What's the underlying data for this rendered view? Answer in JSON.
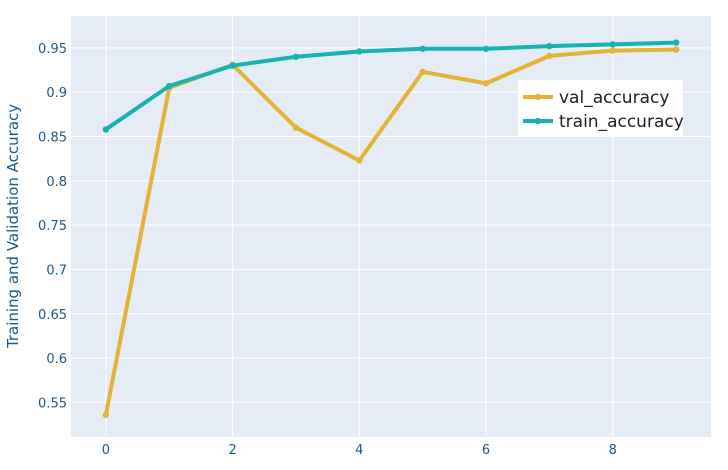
{
  "chart_data": {
    "type": "line",
    "title": "",
    "xlabel": "",
    "ylabel": "Training and Validation Accuracy",
    "x": [
      0,
      1,
      2,
      3,
      4,
      5,
      6,
      7,
      8,
      9
    ],
    "xlim": [
      -0.55,
      9.55
    ],
    "ylim": [
      0.511,
      0.986
    ],
    "xticks": [
      0,
      2,
      4,
      6,
      8
    ],
    "yticks": [
      0.55,
      0.6,
      0.65,
      0.7,
      0.75,
      0.8,
      0.85,
      0.9,
      0.95
    ],
    "ytick_labels": [
      "0.55",
      "0.6",
      "0.65",
      "0.7",
      "0.75",
      "0.8",
      "0.85",
      "0.9",
      "0.95"
    ],
    "grid": true,
    "legend_position": "top-right",
    "series": [
      {
        "name": "val_accuracy",
        "color": "#e3b336",
        "values": [
          0.536,
          0.905,
          0.931,
          0.86,
          0.823,
          0.923,
          0.91,
          0.941,
          0.947,
          0.948
        ]
      },
      {
        "name": "train_accuracy",
        "color": "#17b3b0",
        "values": [
          0.858,
          0.907,
          0.93,
          0.94,
          0.946,
          0.949,
          0.949,
          0.952,
          0.954,
          0.956
        ]
      }
    ]
  },
  "colors": {
    "plot_background": "#e5ecf6",
    "grid": "#ffffff",
    "text": "#1f5a86"
  }
}
